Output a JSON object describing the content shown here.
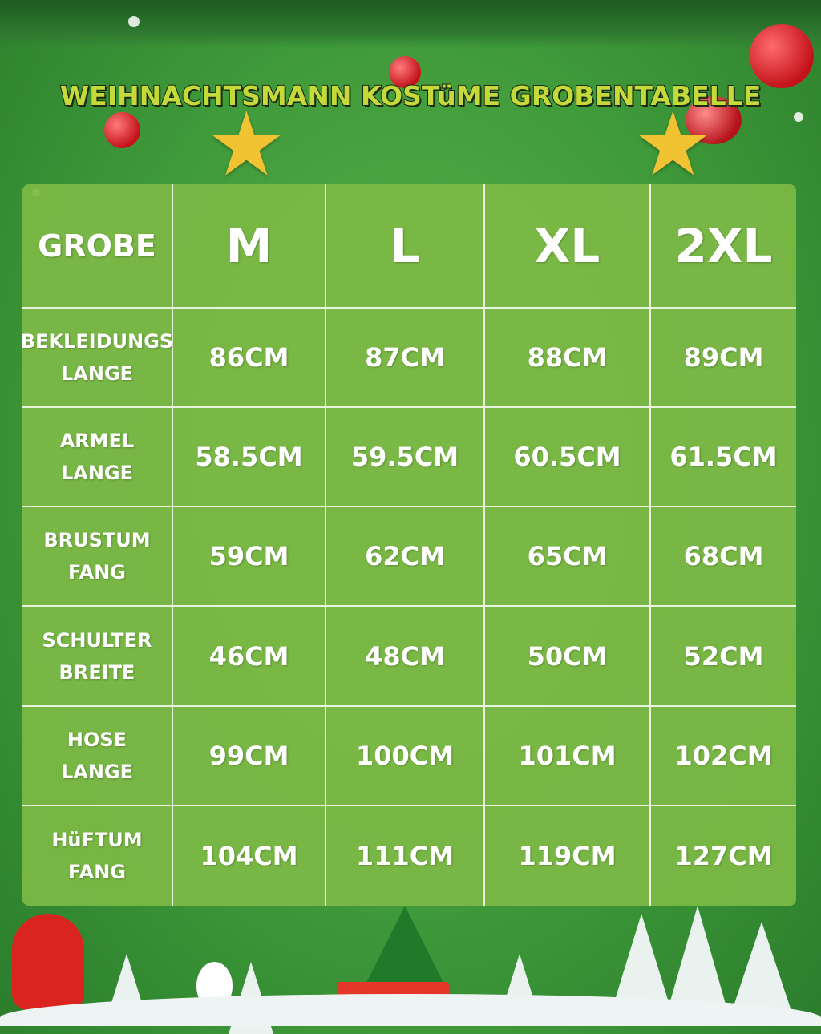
{
  "title": "WEIHNACHTSMANN KOSTüME GROBENTABELLE",
  "table": {
    "headers": [
      "GROBE",
      "M",
      "L",
      "XL",
      "2XL"
    ],
    "rows": [
      {
        "label": "BEKLEIDUNGS\nLANGE",
        "values": [
          "86CM",
          "87CM",
          "88CM",
          "89CM"
        ]
      },
      {
        "label": "ARMEL\nLANGE",
        "values": [
          "58.5CM",
          "59.5CM",
          "60.5CM",
          "61.5CM"
        ]
      },
      {
        "label": "BRUSTUM\nFANG",
        "values": [
          "59CM",
          "62CM",
          "65CM",
          "68CM"
        ]
      },
      {
        "label": "SCHULTER\nBREITE",
        "values": [
          "46CM",
          "48CM",
          "50CM",
          "52CM"
        ]
      },
      {
        "label": "HOSE\nLANGE",
        "values": [
          "99CM",
          "100CM",
          "101CM",
          "102CM"
        ]
      },
      {
        "label": "HüFTUM\nFANG",
        "values": [
          "104CM",
          "111CM",
          "119CM",
          "127CM"
        ]
      }
    ]
  },
  "colors": {
    "background": "#3f9a3a",
    "table": "#7db946",
    "title": "#c4d93a"
  }
}
